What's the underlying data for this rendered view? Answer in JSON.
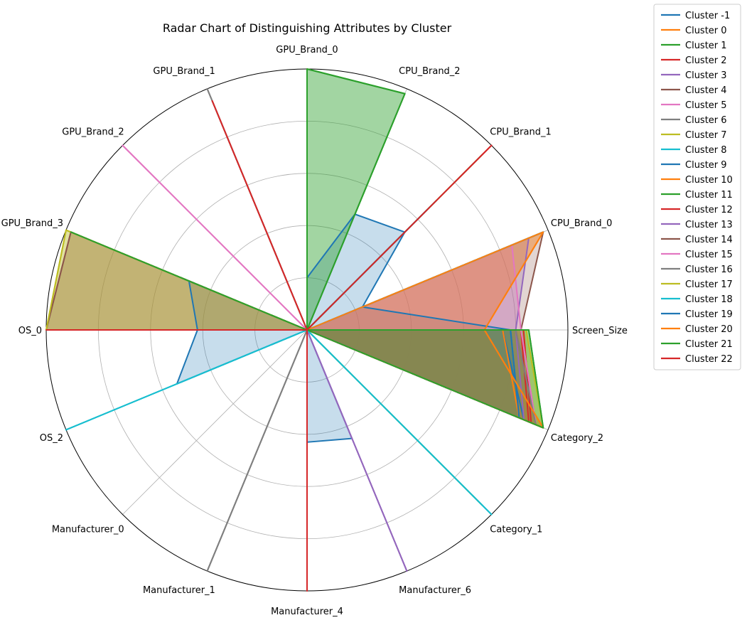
{
  "chart_data": {
    "type": "radar",
    "title": "Radar Chart of Distinguishing Attributes by Cluster",
    "axes": [
      "Screen_Size",
      "CPU_Brand_0",
      "CPU_Brand_1",
      "CPU_Brand_2",
      "GPU_Brand_0",
      "GPU_Brand_1",
      "GPU_Brand_2",
      "GPU_Brand_3",
      "OS_0",
      "OS_2",
      "Manufacturer_0",
      "Manufacturer_1",
      "Manufacturer_4",
      "Manufacturer_6",
      "Category_1",
      "Category_2"
    ],
    "rlim": [
      0,
      1
    ],
    "grid": true,
    "legend_position": "outside-right",
    "series": [
      {
        "name": "Cluster -1",
        "color": "#1f77b4",
        "values": [
          0.78,
          0.23,
          0.53,
          0.48,
          0.2,
          0.0,
          0.0,
          0.49,
          0.42,
          0.54,
          0.0,
          0.0,
          0.43,
          0.45,
          0.0,
          0.88
        ]
      },
      {
        "name": "Cluster 0",
        "color": "#ff7f0e",
        "values": [
          0.68,
          0.98,
          0.0,
          0.0,
          1.0,
          0.0,
          0.0,
          0.0,
          0.0,
          0.0,
          0.0,
          0.0,
          0.0,
          0.0,
          0.0,
          0.98
        ]
      },
      {
        "name": "Cluster 1",
        "color": "#2ca02c",
        "values": [
          0.85,
          0.0,
          0.0,
          0.98,
          1.0,
          0.0,
          0.0,
          0.98,
          0.0,
          0.0,
          0.0,
          0.0,
          0.0,
          0.0,
          0.0,
          0.98
        ]
      },
      {
        "name": "Cluster 2",
        "color": "#d62728",
        "values": [
          0.83,
          0.0,
          1.0,
          0.0,
          0.0,
          0.95,
          0.0,
          0.0,
          1.0,
          0.0,
          0.0,
          0.0,
          0.0,
          0.0,
          0.0,
          0.93
        ]
      },
      {
        "name": "Cluster 3",
        "color": "#9467bd",
        "values": [
          0.8,
          0.92,
          0.0,
          0.0,
          0.0,
          0.0,
          0.0,
          0.0,
          0.0,
          0.0,
          0.0,
          0.0,
          0.0,
          1.0,
          0.0,
          0.95
        ]
      },
      {
        "name": "Cluster 4",
        "color": "#8c564b",
        "values": [
          0.82,
          0.98,
          0.0,
          0.0,
          0.0,
          0.0,
          0.0,
          0.98,
          1.0,
          0.0,
          0.0,
          0.0,
          0.0,
          0.0,
          0.0,
          0.95
        ]
      },
      {
        "name": "Cluster 5",
        "color": "#e377c2",
        "values": [
          0.82,
          0.85,
          0.0,
          0.0,
          0.0,
          0.0,
          1.0,
          0.0,
          0.0,
          0.0,
          0.0,
          0.0,
          0.0,
          0.0,
          0.0,
          0.95
        ]
      },
      {
        "name": "Cluster 6",
        "color": "#7f7f7f",
        "values": [
          0.8,
          0.0,
          0.0,
          0.0,
          0.0,
          1.0,
          0.0,
          0.0,
          0.0,
          0.0,
          0.0,
          1.0,
          0.0,
          0.0,
          0.0,
          0.95
        ]
      },
      {
        "name": "Cluster 7",
        "color": "#bcbd22",
        "values": [
          0.84,
          0.0,
          0.0,
          0.0,
          0.0,
          0.0,
          0.0,
          1.0,
          1.0,
          0.0,
          0.0,
          0.0,
          0.0,
          0.0,
          0.0,
          0.98
        ]
      },
      {
        "name": "Cluster 8",
        "color": "#17becf",
        "values": [
          0.0,
          0.98,
          0.0,
          0.0,
          0.0,
          0.0,
          0.0,
          0.0,
          0.0,
          1.0,
          0.0,
          0.0,
          0.0,
          0.0,
          1.0,
          0.0
        ]
      },
      {
        "name": "Cluster 9",
        "color": "#1f77b4",
        "values": [
          0.75,
          0.0,
          0.7,
          0.0,
          0.0,
          0.0,
          0.0,
          0.0,
          0.0,
          0.0,
          0.0,
          0.0,
          0.0,
          0.0,
          0.0,
          0.9
        ]
      },
      {
        "name": "Cluster 10",
        "color": "#ff7f0e",
        "values": [
          0.75,
          0.0,
          0.0,
          0.0,
          0.0,
          0.0,
          0.0,
          0.0,
          0.0,
          0.0,
          0.0,
          0.0,
          0.8,
          0.0,
          0.0,
          0.88
        ]
      },
      {
        "name": "Cluster 11",
        "color": "#2ca02c",
        "values": [
          0.75,
          0.0,
          0.95,
          0.0,
          0.0,
          0.0,
          0.0,
          0.0,
          0.82,
          0.0,
          0.0,
          0.0,
          0.0,
          0.0,
          0.95,
          0.0
        ]
      },
      {
        "name": "Cluster 12",
        "color": "#d62728",
        "values": [
          0.82,
          0.0,
          0.0,
          0.0,
          0.0,
          0.0,
          0.0,
          0.0,
          0.0,
          0.0,
          0.0,
          0.0,
          1.0,
          0.0,
          0.0,
          0.92
        ]
      },
      {
        "name": "Cluster 13",
        "color": "#9467bd",
        "values": [
          0.8,
          0.0,
          0.0,
          0.0,
          0.0,
          0.0,
          0.0,
          0.0,
          0.0,
          0.0,
          0.0,
          0.0,
          0.0,
          1.0,
          0.0,
          0.9
        ]
      },
      {
        "name": "Cluster 14",
        "color": "#8c564b",
        "values": [
          0.8,
          0.0,
          0.0,
          0.0,
          0.0,
          0.0,
          0.0,
          0.98,
          1.0,
          0.0,
          0.0,
          0.0,
          0.0,
          0.0,
          0.0,
          0.95
        ]
      },
      {
        "name": "Cluster 15",
        "color": "#e377c2",
        "values": [
          0.82,
          0.0,
          0.0,
          0.0,
          0.0,
          0.0,
          1.0,
          0.0,
          0.0,
          0.0,
          0.0,
          0.0,
          0.0,
          0.0,
          0.0,
          0.95
        ]
      },
      {
        "name": "Cluster 16",
        "color": "#7f7f7f",
        "values": [
          0.8,
          0.0,
          0.0,
          0.0,
          0.0,
          1.0,
          0.0,
          0.0,
          0.0,
          0.0,
          0.0,
          1.0,
          0.0,
          0.0,
          0.0,
          0.95
        ]
      },
      {
        "name": "Cluster 17",
        "color": "#bcbd22",
        "values": [
          0.84,
          0.0,
          0.0,
          0.0,
          0.0,
          0.0,
          0.0,
          1.0,
          1.0,
          0.0,
          0.0,
          0.0,
          0.0,
          0.0,
          0.0,
          0.98
        ]
      },
      {
        "name": "Cluster 18",
        "color": "#17becf",
        "values": [
          0.0,
          0.98,
          0.0,
          0.0,
          0.0,
          0.0,
          0.0,
          0.0,
          0.0,
          1.0,
          0.0,
          0.0,
          0.0,
          0.0,
          1.0,
          0.0
        ]
      },
      {
        "name": "Cluster 19",
        "color": "#1f77b4",
        "values": [
          0.78,
          0.0,
          0.65,
          0.0,
          0.0,
          0.0,
          0.0,
          0.0,
          0.0,
          0.0,
          0.0,
          0.0,
          0.0,
          0.0,
          0.0,
          0.88
        ]
      },
      {
        "name": "Cluster 20",
        "color": "#ff7f0e",
        "values": [
          0.68,
          0.98,
          0.0,
          0.0,
          1.0,
          0.0,
          0.0,
          0.0,
          0.0,
          0.0,
          0.0,
          0.0,
          0.0,
          0.0,
          0.0,
          0.98
        ]
      },
      {
        "name": "Cluster 21",
        "color": "#2ca02c",
        "values": [
          0.85,
          0.0,
          0.0,
          0.98,
          1.0,
          0.0,
          0.0,
          0.98,
          0.0,
          0.0,
          0.0,
          0.0,
          0.0,
          0.0,
          0.0,
          0.98
        ]
      },
      {
        "name": "Cluster 22",
        "color": "#d62728",
        "values": [
          0.0,
          0.0,
          1.0,
          0.0,
          0.0,
          0.95,
          0.0,
          0.0,
          1.0,
          0.0,
          0.0,
          0.0,
          1.0,
          0.0,
          0.0,
          0.0
        ]
      }
    ]
  }
}
